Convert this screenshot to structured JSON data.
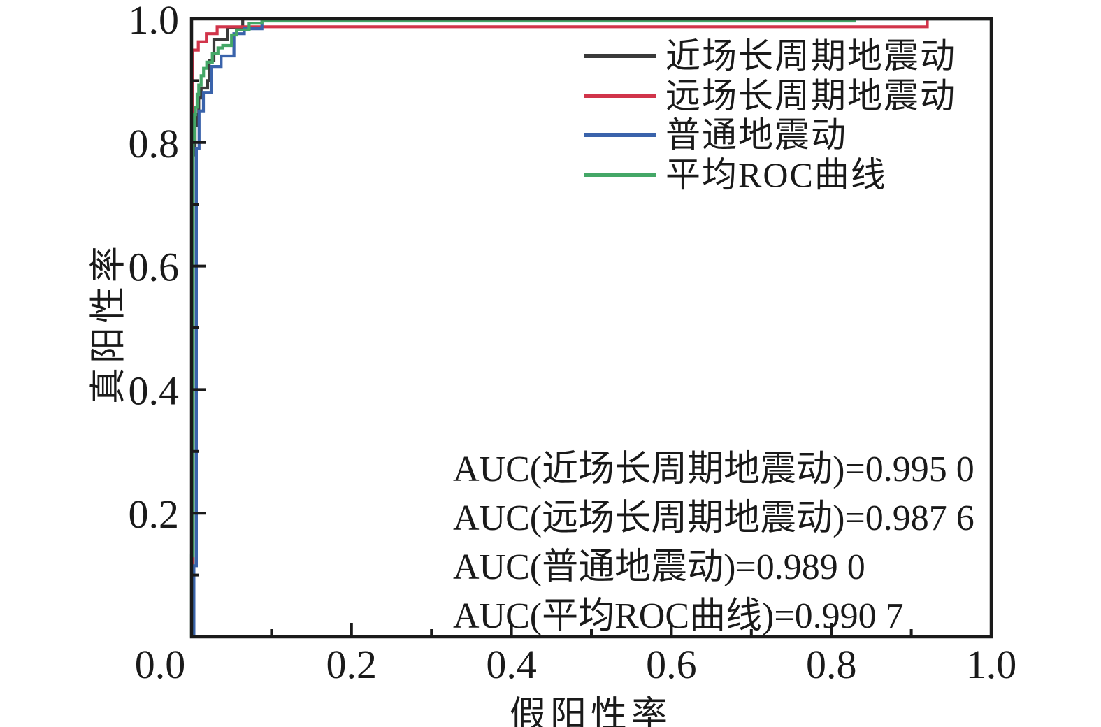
{
  "chart_data": {
    "type": "line",
    "subtype": "roc-step-curves",
    "title": "",
    "xlabel": "假阳性率",
    "ylabel": "真阳性率",
    "xlim": [
      0,
      1
    ],
    "ylim": [
      0,
      1
    ],
    "grid": false,
    "legend_position": "inside-upper-right",
    "x_ticks": {
      "major": [
        0,
        0.2,
        0.4,
        0.6,
        0.8,
        1.0
      ],
      "labels": [
        "0.0",
        "0.2",
        "0.4",
        "0.6",
        "0.8",
        "1.0"
      ],
      "minor": [
        0.1,
        0.3,
        0.5,
        0.7,
        0.9
      ]
    },
    "y_ticks": {
      "major": [
        0.2,
        0.4,
        0.6,
        0.8,
        1.0
      ],
      "labels": [
        "0.2",
        "0.4",
        "0.6",
        "0.8",
        "1.0"
      ],
      "minor": [
        0.1,
        0.3,
        0.5,
        0.7,
        0.9
      ]
    },
    "axis_color": "#1a1a1a",
    "series": [
      {
        "key": "near-field-long-period",
        "name": "近场长周期地震动",
        "color": "#3a3a3a",
        "auc_text": "AUC(近场长周期地震动)=0.995 0",
        "auc_value": "0.995 0",
        "points": [
          [
            0.002,
            0
          ],
          [
            0.002,
            0.78
          ],
          [
            0.0045,
            0.78
          ],
          [
            0.0045,
            0.828
          ],
          [
            0.0064,
            0.828
          ],
          [
            0.0064,
            0.846
          ],
          [
            0.009,
            0.846
          ],
          [
            0.009,
            0.872
          ],
          [
            0.012,
            0.872
          ],
          [
            0.012,
            0.888
          ],
          [
            0.02,
            0.888
          ],
          [
            0.02,
            0.9
          ],
          [
            0.022,
            0.9
          ],
          [
            0.022,
            0.933
          ],
          [
            0.028,
            0.933
          ],
          [
            0.028,
            0.967
          ],
          [
            0.045,
            0.967
          ],
          [
            0.045,
            0.986
          ],
          [
            0.064,
            0.986
          ],
          [
            0.064,
            1.0
          ],
          [
            1.0,
            1.0
          ]
        ]
      },
      {
        "key": "far-field-long-period",
        "name": "远场长周期地震动",
        "color": "#d1344a",
        "auc_text": "AUC(远场长周期地震动)=0.987 6",
        "auc_value": "0.987 6",
        "points": [
          [
            0.001,
            0
          ],
          [
            0.001,
            0.9495
          ],
          [
            0.0085,
            0.9495
          ],
          [
            0.0085,
            0.963
          ],
          [
            0.0185,
            0.963
          ],
          [
            0.0185,
            0.976
          ],
          [
            0.032,
            0.976
          ],
          [
            0.032,
            0.9872
          ],
          [
            0.92,
            0.9872
          ],
          [
            0.92,
            1.0
          ],
          [
            1.0,
            1.0
          ]
        ]
      },
      {
        "key": "ordinary-ground-motion",
        "name": "普通地震动",
        "color": "#3a63ab",
        "auc_text": "AUC(普通地震动)=0.989 0",
        "auc_value": "0.989 0",
        "points": [
          [
            0.003,
            0
          ],
          [
            0.003,
            0.115
          ],
          [
            0.006,
            0.115
          ],
          [
            0.006,
            0.79
          ],
          [
            0.0094,
            0.79
          ],
          [
            0.0094,
            0.851
          ],
          [
            0.0149,
            0.851
          ],
          [
            0.0149,
            0.881
          ],
          [
            0.0245,
            0.881
          ],
          [
            0.0245,
            0.923
          ],
          [
            0.037,
            0.923
          ],
          [
            0.037,
            0.94
          ],
          [
            0.053,
            0.94
          ],
          [
            0.053,
            0.976
          ],
          [
            0.066,
            0.976
          ],
          [
            0.066,
            0.984
          ],
          [
            0.088,
            0.984
          ],
          [
            0.088,
            1.0
          ],
          [
            1.0,
            1.0
          ]
        ]
      },
      {
        "key": "average-roc",
        "name": "平均ROC曲线",
        "color": "#44a767",
        "auc_text": "AUC(平均ROC曲线)=0.990 7",
        "auc_value": "0.990 7",
        "points": [
          [
            0,
            0
          ],
          [
            0,
            0.131
          ],
          [
            0.002,
            0.131
          ],
          [
            0.002,
            0.8
          ],
          [
            0.0035,
            0.8
          ],
          [
            0.0035,
            0.845
          ],
          [
            0.005,
            0.845
          ],
          [
            0.005,
            0.857
          ],
          [
            0.007,
            0.857
          ],
          [
            0.007,
            0.878
          ],
          [
            0.009,
            0.878
          ],
          [
            0.009,
            0.893
          ],
          [
            0.012,
            0.893
          ],
          [
            0.012,
            0.908
          ],
          [
            0.015,
            0.908
          ],
          [
            0.015,
            0.92
          ],
          [
            0.019,
            0.92
          ],
          [
            0.019,
            0.93
          ],
          [
            0.026,
            0.93
          ],
          [
            0.026,
            0.944
          ],
          [
            0.033,
            0.944
          ],
          [
            0.033,
            0.953
          ],
          [
            0.039,
            0.953
          ],
          [
            0.039,
            0.957
          ],
          [
            0.05,
            0.957
          ],
          [
            0.05,
            0.974
          ],
          [
            0.056,
            0.974
          ],
          [
            0.056,
            0.982
          ],
          [
            0.072,
            0.982
          ],
          [
            0.072,
            0.993
          ],
          [
            0.088,
            0.993
          ],
          [
            0.088,
            0.9966
          ],
          [
            0.829,
            0.9966
          ],
          [
            0.829,
            1.0
          ],
          [
            1.0,
            1.0
          ]
        ]
      }
    ],
    "annotations": [
      "AUC(近场长周期地震动)=0.995 0",
      "AUC(远场长周期地震动)=0.987 6",
      "AUC(普通地震动)=0.989 0",
      "AUC(平均ROC曲线)=0.990 7"
    ]
  }
}
